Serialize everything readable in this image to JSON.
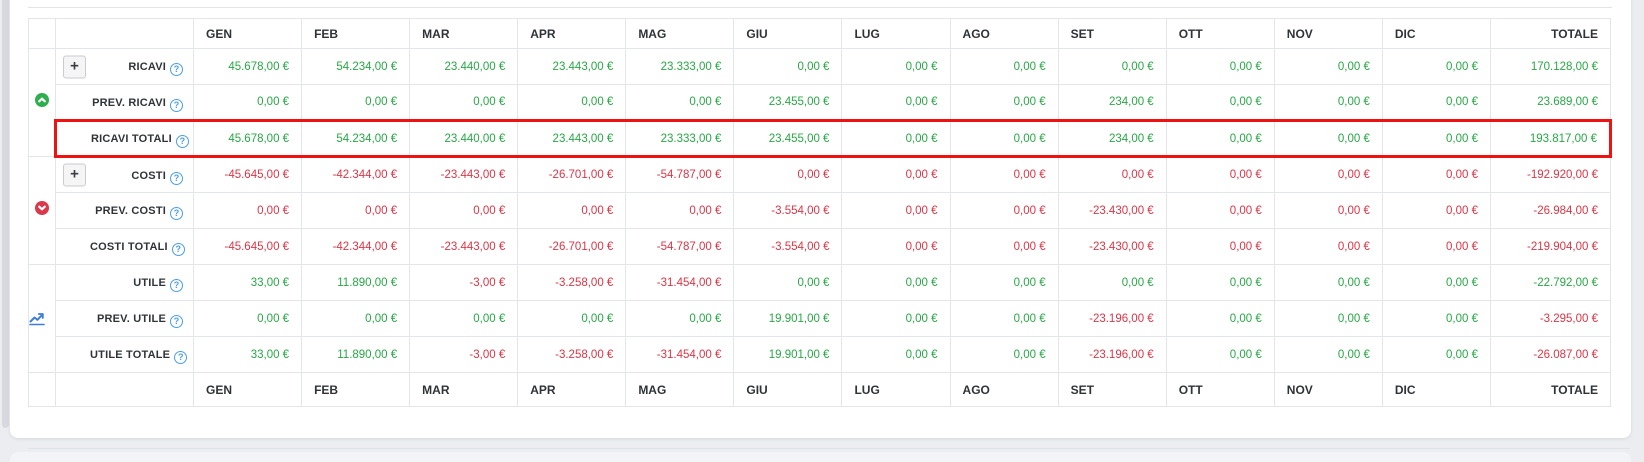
{
  "colors": {
    "positive": "#28a745",
    "negative": "#dc3545",
    "highlight": "#ee1212",
    "help_blue": "#4a9eea",
    "icon_green": "#2eae4e",
    "icon_red": "#d9394a",
    "icon_blue": "#3b7ddd",
    "grid": "#e3e5ea"
  },
  "table": {
    "months": [
      "GEN",
      "FEB",
      "MAR",
      "APR",
      "MAG",
      "GIU",
      "LUG",
      "AGO",
      "SET",
      "OTT",
      "NOV",
      "DIC"
    ],
    "total_label": "TOTALE",
    "plus_label": "+",
    "help_label": "?",
    "rows": [
      {
        "label": "RICAVI",
        "expandable": true,
        "group_start": true,
        "group_icon": "circle-up-green",
        "values": [
          "45.678,00 €",
          "54.234,00 €",
          "23.440,00 €",
          "23.443,00 €",
          "23.333,00 €",
          "0,00 €",
          "0,00 €",
          "0,00 €",
          "0,00 €",
          "0,00 €",
          "0,00 €",
          "0,00 €"
        ],
        "colors": [
          "g",
          "g",
          "g",
          "g",
          "g",
          "g",
          "g",
          "g",
          "g",
          "g",
          "g",
          "g"
        ],
        "total": "170.128,00 €",
        "total_color": "g",
        "highlight": false
      },
      {
        "label": "PREV. RICAVI",
        "expandable": false,
        "values": [
          "0,00 €",
          "0,00 €",
          "0,00 €",
          "0,00 €",
          "0,00 €",
          "23.455,00 €",
          "0,00 €",
          "0,00 €",
          "234,00 €",
          "0,00 €",
          "0,00 €",
          "0,00 €"
        ],
        "colors": [
          "g",
          "g",
          "g",
          "g",
          "g",
          "g",
          "g",
          "g",
          "g",
          "g",
          "g",
          "g"
        ],
        "total": "23.689,00 €",
        "total_color": "g",
        "highlight": false
      },
      {
        "label": "RICAVI TOTALI",
        "expandable": false,
        "values": [
          "45.678,00 €",
          "54.234,00 €",
          "23.440,00 €",
          "23.443,00 €",
          "23.333,00 €",
          "23.455,00 €",
          "0,00 €",
          "0,00 €",
          "234,00 €",
          "0,00 €",
          "0,00 €",
          "0,00 €"
        ],
        "colors": [
          "g",
          "g",
          "g",
          "g",
          "g",
          "g",
          "g",
          "g",
          "g",
          "g",
          "g",
          "g"
        ],
        "total": "193.817,00 €",
        "total_color": "g",
        "highlight": true
      },
      {
        "label": "COSTI",
        "expandable": true,
        "group_start": true,
        "group_icon": "circle-down-red",
        "values": [
          "-45.645,00 €",
          "-42.344,00 €",
          "-23.443,00 €",
          "-26.701,00 €",
          "-54.787,00 €",
          "0,00 €",
          "0,00 €",
          "0,00 €",
          "0,00 €",
          "0,00 €",
          "0,00 €",
          "0,00 €"
        ],
        "colors": [
          "r",
          "r",
          "r",
          "r",
          "r",
          "r",
          "r",
          "r",
          "r",
          "r",
          "r",
          "r"
        ],
        "total": "-192.920,00 €",
        "total_color": "r",
        "highlight": false
      },
      {
        "label": "PREV. COSTI",
        "expandable": false,
        "values": [
          "0,00 €",
          "0,00 €",
          "0,00 €",
          "0,00 €",
          "0,00 €",
          "-3.554,00 €",
          "0,00 €",
          "0,00 €",
          "-23.430,00 €",
          "0,00 €",
          "0,00 €",
          "0,00 €"
        ],
        "colors": [
          "r",
          "r",
          "r",
          "r",
          "r",
          "r",
          "r",
          "r",
          "r",
          "r",
          "r",
          "r"
        ],
        "total": "-26.984,00 €",
        "total_color": "r",
        "highlight": false
      },
      {
        "label": "COSTI TOTALI",
        "expandable": false,
        "values": [
          "-45.645,00 €",
          "-42.344,00 €",
          "-23.443,00 €",
          "-26.701,00 €",
          "-54.787,00 €",
          "-3.554,00 €",
          "0,00 €",
          "0,00 €",
          "-23.430,00 €",
          "0,00 €",
          "0,00 €",
          "0,00 €"
        ],
        "colors": [
          "r",
          "r",
          "r",
          "r",
          "r",
          "r",
          "r",
          "r",
          "r",
          "r",
          "r",
          "r"
        ],
        "total": "-219.904,00 €",
        "total_color": "r",
        "highlight": false
      },
      {
        "label": "UTILE",
        "expandable": false,
        "group_start": true,
        "group_icon": "trend-chart-blue",
        "values": [
          "33,00 €",
          "11.890,00 €",
          "-3,00 €",
          "-3.258,00 €",
          "-31.454,00 €",
          "0,00 €",
          "0,00 €",
          "0,00 €",
          "0,00 €",
          "0,00 €",
          "0,00 €",
          "0,00 €"
        ],
        "colors": [
          "g",
          "g",
          "r",
          "r",
          "r",
          "g",
          "g",
          "g",
          "g",
          "g",
          "g",
          "g"
        ],
        "total": "-22.792,00 €",
        "total_color": "g",
        "highlight": false
      },
      {
        "label": "PREV. UTILE",
        "expandable": false,
        "values": [
          "0,00 €",
          "0,00 €",
          "0,00 €",
          "0,00 €",
          "0,00 €",
          "19.901,00 €",
          "0,00 €",
          "0,00 €",
          "-23.196,00 €",
          "0,00 €",
          "0,00 €",
          "0,00 €"
        ],
        "colors": [
          "g",
          "g",
          "g",
          "g",
          "g",
          "g",
          "g",
          "g",
          "r",
          "g",
          "g",
          "g"
        ],
        "total": "-3.295,00 €",
        "total_color": "r",
        "highlight": false
      },
      {
        "label": "UTILE TOTALE",
        "expandable": false,
        "values": [
          "33,00 €",
          "11.890,00 €",
          "-3,00 €",
          "-3.258,00 €",
          "-31.454,00 €",
          "19.901,00 €",
          "0,00 €",
          "0,00 €",
          "-23.196,00 €",
          "0,00 €",
          "0,00 €",
          "0,00 €"
        ],
        "colors": [
          "g",
          "g",
          "r",
          "r",
          "r",
          "g",
          "g",
          "g",
          "r",
          "g",
          "g",
          "g"
        ],
        "total": "-26.087,00 €",
        "total_color": "r",
        "highlight": false
      }
    ]
  }
}
